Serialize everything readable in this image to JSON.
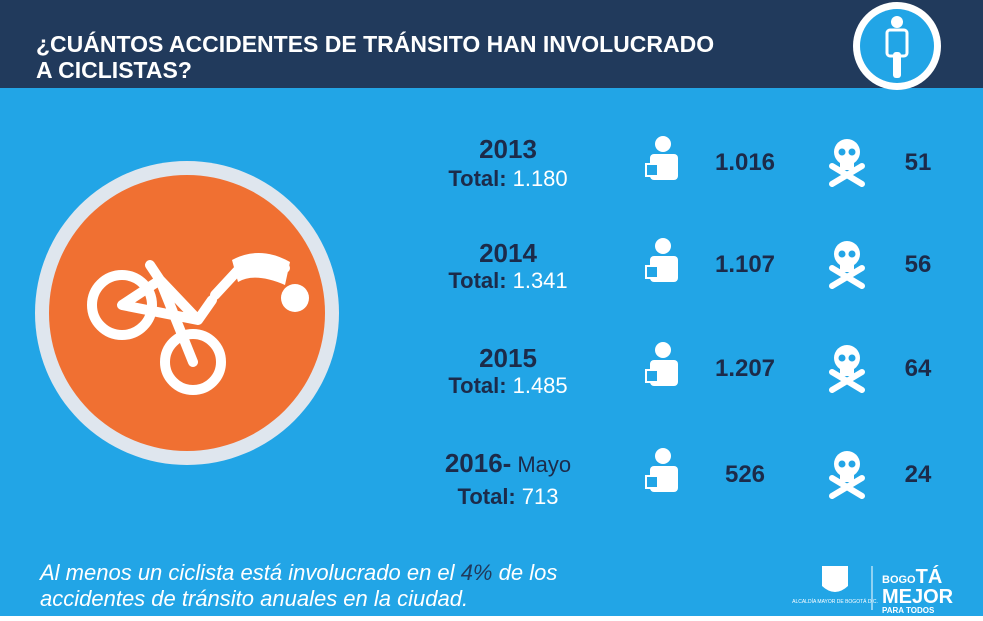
{
  "header": {
    "title_lines": [
      "¿CUÁNTOS ACCIDENTES DE TRÁNSITO HAN INVOLUCRADO",
      "A CICLISTAS?"
    ]
  },
  "rows": [
    {
      "year": "2013",
      "total_label": "Total:",
      "total": "1.180",
      "injured": "1.016",
      "deaths": "51"
    },
    {
      "year": "2014",
      "total_label": "Total:",
      "total": "1.341",
      "injured": "1.107",
      "deaths": "56"
    },
    {
      "year": "2015",
      "total_label": "Total:",
      "total": "1.485",
      "injured": "1.207",
      "deaths": "64"
    },
    {
      "year": "2016-",
      "year_note": "Mayo",
      "total_label": "Total:",
      "total": "713",
      "injured": "526",
      "deaths": "24"
    }
  ],
  "footer": {
    "text_before": "Al menos un ciclista está involucrado en el",
    "highlight": "4%",
    "text_after": "de los",
    "line2": "accidentes de tránsito anuales en la ciudad."
  },
  "logos": {
    "alcaldia": "ALCALDÍA MAYOR DE BOGOTÁ D.C.",
    "bogota_prefix": "BOGO",
    "bogota_suffix": "TÁ",
    "mejor": "MEJOR",
    "para_todos": "PARA TODOS"
  }
}
